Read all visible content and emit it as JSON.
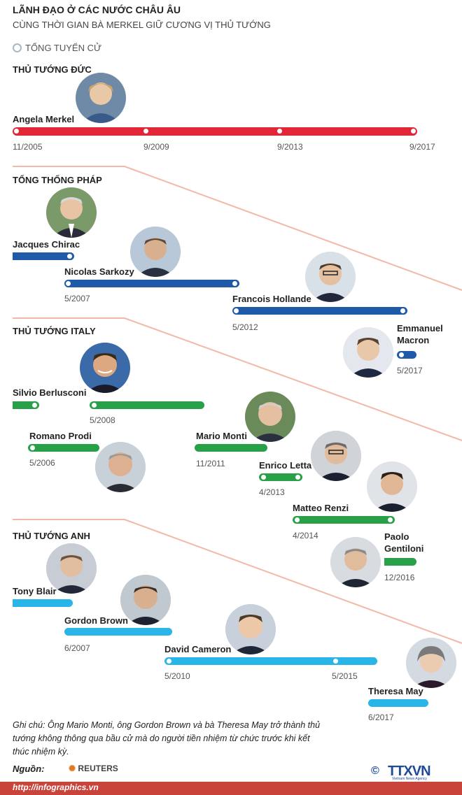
{
  "header": {
    "title": "LÃNH ĐẠO Ở CÁC NƯỚC CHÂU ÂU",
    "subtitle": "CÙNG THỜI GIAN BÀ MERKEL GIỮ CƯƠNG VỊ THỦ TƯỚNG",
    "legend_label": "TỔNG TUYỂN CỬ"
  },
  "germany": {
    "section": "THỦ TƯỚNG ĐỨC",
    "leader": "Angela Merkel",
    "dates": [
      "11/2005",
      "9/2009",
      "9/2013",
      "9/2017"
    ]
  },
  "france": {
    "section": "TỔNG THỐNG PHÁP",
    "leaders": [
      {
        "name": "Jacques Chirac",
        "date": ""
      },
      {
        "name": "Nicolas Sarkozy",
        "date": "5/2007"
      },
      {
        "name": "Francois Hollande",
        "date": "5/2012"
      },
      {
        "name": "Emmanuel",
        "name2": "Macron",
        "date": "5/2017"
      }
    ]
  },
  "italy": {
    "section": "THỦ TƯỚNG ITALY",
    "leaders": [
      {
        "name": "Silvio Berlusconi",
        "date": "5/2008"
      },
      {
        "name": "Romano Prodi",
        "date": "5/2006"
      },
      {
        "name": "Mario Monti",
        "date": "11/2011"
      },
      {
        "name": "Enrico Letta",
        "date": "4/2013"
      },
      {
        "name": "Matteo Renzi",
        "date": "4/2014"
      },
      {
        "name": "Paolo",
        "name2": "Gentiloni",
        "date": "12/2016"
      }
    ]
  },
  "uk": {
    "section": "THỦ TƯỚNG ANH",
    "leaders": [
      {
        "name": "Tony Blair",
        "date": ""
      },
      {
        "name": "Gordon Brown",
        "date": "6/2007"
      },
      {
        "name": "David Cameron",
        "date": "5/2010",
        "date2": "5/2015"
      },
      {
        "name": "Theresa May",
        "date": "6/2017"
      }
    ]
  },
  "footer": {
    "note": "Ghi chú: Ông Mario Monti, ông Gordon Brown và bà Theresa May trở thành thủ tướng không thông qua bầu cử mà do người tiền nhiệm từ chức trước khi kết thúc nhiệm kỳ.",
    "source_label": "Nguồn:",
    "source": "REUTERS",
    "url": "http://infographics.vn",
    "logo_text": "TTXVN",
    "logo_sub": "Vietnam News Agency"
  },
  "colors": {
    "germany": "#e32636",
    "france": "#1e5aa8",
    "italy": "#27a048",
    "uk": "#29b5e8",
    "divider": "#f2b8a8",
    "footer": "#c8433a"
  }
}
